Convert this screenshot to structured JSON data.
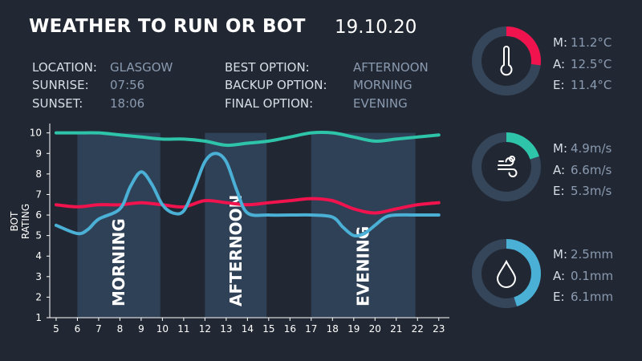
{
  "header": {
    "title": "WEATHER TO RUN OR BOT",
    "date": "19.10.20"
  },
  "info_left": [
    {
      "label": "LOCATION:",
      "value": "GLASGOW"
    },
    {
      "label": "SUNRISE:",
      "value": "07:56"
    },
    {
      "label": "SUNSET:",
      "value": "18:06"
    }
  ],
  "info_right": [
    {
      "label": "BEST OPTION:",
      "value": "AFTERNOON"
    },
    {
      "label": "BACKUP OPTION:",
      "value": "MORNING"
    },
    {
      "label": "FINAL OPTION:",
      "value": "EVENING"
    }
  ],
  "gauges": [
    {
      "icon": "thermometer-icon",
      "color": "#f0134d",
      "fraction": 0.27,
      "rows": [
        {
          "k": "M:",
          "v": "11.2°C"
        },
        {
          "k": "A:",
          "v": "12.5°C"
        },
        {
          "k": "E:",
          "v": "11.4°C"
        }
      ]
    },
    {
      "icon": "wind-icon",
      "color": "#2ec4a9",
      "fraction": 0.2,
      "rows": [
        {
          "k": "M:",
          "v": "4.9m/s"
        },
        {
          "k": "A:",
          "v": "6.6m/s"
        },
        {
          "k": "E:",
          "v": "5.3m/s"
        }
      ]
    },
    {
      "icon": "raindrop-icon",
      "color": "#4ab0d6",
      "fraction": 0.45,
      "rows": [
        {
          "k": "M:",
          "v": "2.5mm"
        },
        {
          "k": "A:",
          "v": "0.1mm"
        },
        {
          "k": "E:",
          "v": "6.1mm"
        }
      ]
    }
  ],
  "chart_data": {
    "type": "line",
    "ylabel": "BOT RATING",
    "xlabel": "",
    "xlim": [
      4.7,
      23.5
    ],
    "ylim": [
      1,
      10.3
    ],
    "xticks": [
      5,
      6,
      7,
      8,
      9,
      10,
      11,
      12,
      13,
      14,
      15,
      16,
      17,
      18,
      19,
      20,
      21,
      22,
      23
    ],
    "yticks": [
      1,
      2,
      3,
      4,
      5,
      6,
      7,
      8,
      9,
      10
    ],
    "periods": [
      {
        "label": "MORNING",
        "start": 6,
        "end": 9.9
      },
      {
        "label": "AFTERNOON",
        "start": 12,
        "end": 14.9
      },
      {
        "label": "EVENING",
        "start": 17,
        "end": 21.9
      }
    ],
    "series": [
      {
        "color": "#2ec4a9",
        "x": [
          5,
          6,
          7,
          8,
          9,
          10,
          11,
          12,
          13,
          14,
          15,
          16,
          17,
          18,
          19,
          20,
          21,
          22,
          23
        ],
        "y": [
          10,
          10,
          10,
          9.9,
          9.8,
          9.7,
          9.7,
          9.6,
          9.4,
          9.5,
          9.6,
          9.8,
          10,
          10,
          9.8,
          9.6,
          9.7,
          9.8,
          9.9
        ]
      },
      {
        "color": "#f0134d",
        "x": [
          5,
          6,
          7,
          8,
          9,
          10,
          11,
          12,
          13,
          14,
          15,
          16,
          17,
          18,
          19,
          20,
          21,
          22,
          23
        ],
        "y": [
          6.5,
          6.4,
          6.5,
          6.5,
          6.6,
          6.5,
          6.4,
          6.7,
          6.6,
          6.5,
          6.6,
          6.7,
          6.8,
          6.7,
          6.3,
          6.1,
          6.3,
          6.5,
          6.6
        ]
      },
      {
        "color": "#4ab0d6",
        "x": [
          5,
          6,
          6.5,
          7,
          8,
          8.5,
          9,
          9.5,
          10,
          10.5,
          11,
          11.5,
          12,
          12.5,
          13,
          13.5,
          14,
          15,
          16,
          17,
          18,
          18.5,
          19,
          19.5,
          20,
          20.5,
          21,
          22,
          23
        ],
        "y": [
          5.5,
          5.1,
          5.3,
          5.8,
          6.3,
          7.4,
          8.1,
          7.5,
          6.5,
          6.1,
          6.2,
          7.3,
          8.6,
          9.0,
          8.6,
          7.2,
          6.1,
          6.0,
          6.0,
          6.0,
          5.9,
          5.4,
          5.0,
          5.1,
          5.5,
          5.9,
          6.0,
          6.0,
          6.0
        ]
      }
    ]
  }
}
